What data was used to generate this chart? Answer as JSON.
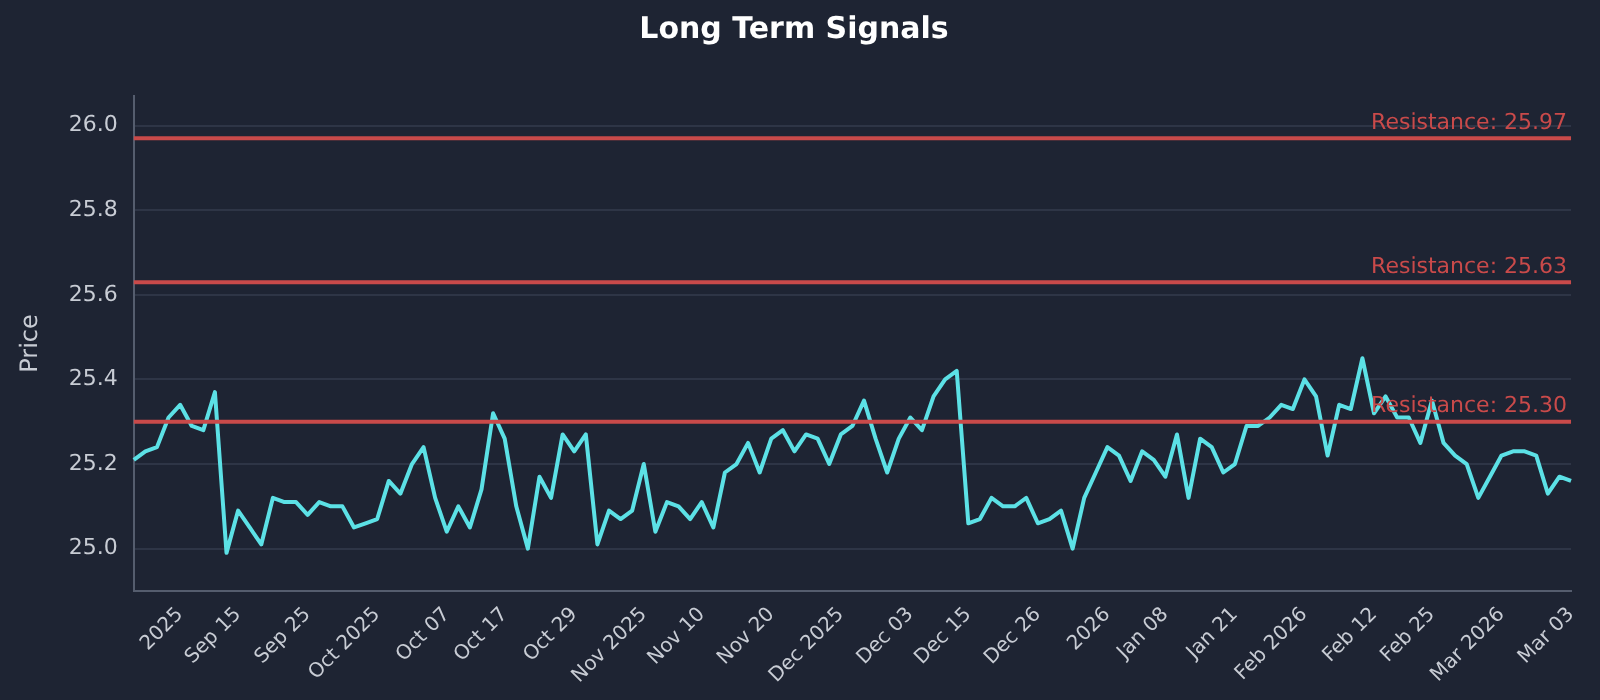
{
  "chart_data": {
    "type": "line",
    "title": "Long Term Signals",
    "ylabel": "Price",
    "categories": [
      null,
      null,
      null,
      null,
      "2025",
      null,
      null,
      null,
      null,
      "Sep 15",
      null,
      null,
      null,
      null,
      null,
      "Sep 25",
      null,
      null,
      null,
      null,
      null,
      "Oct 2025",
      null,
      null,
      null,
      null,
      null,
      "Oct 07",
      null,
      null,
      null,
      null,
      "Oct 17",
      null,
      null,
      null,
      null,
      null,
      "Oct 29",
      null,
      null,
      null,
      null,
      null,
      "Nov 2025",
      null,
      null,
      null,
      null,
      "Nov 10",
      null,
      null,
      null,
      null,
      null,
      "Nov 20",
      null,
      null,
      null,
      null,
      null,
      "Dec 2025",
      null,
      null,
      null,
      null,
      null,
      "Dec 03",
      null,
      null,
      null,
      null,
      "Dec 15",
      null,
      null,
      null,
      null,
      null,
      "Dec 26",
      null,
      null,
      null,
      null,
      null,
      "2026",
      null,
      null,
      null,
      null,
      "Jan 08",
      null,
      null,
      null,
      null,
      null,
      "Jan 21",
      null,
      null,
      null,
      null,
      null,
      "Feb 2026",
      null,
      null,
      null,
      null,
      null,
      "Feb 12",
      null,
      null,
      null,
      null,
      "Feb 25",
      null,
      null,
      null,
      null,
      null,
      "Mar 2026",
      null,
      null,
      null,
      null,
      null,
      "Mar 03"
    ],
    "series": [
      {
        "color": "#5ce1e6",
        "values": [
          25.21,
          25.23,
          25.24,
          25.31,
          25.34,
          25.29,
          25.28,
          25.37,
          24.99,
          25.09,
          25.05,
          25.01,
          25.12,
          25.11,
          25.11,
          25.08,
          25.11,
          25.1,
          25.1,
          25.05,
          25.06,
          25.07,
          25.16,
          25.13,
          25.2,
          25.24,
          25.12,
          25.04,
          25.1,
          25.05,
          25.14,
          25.32,
          25.26,
          25.1,
          25.0,
          25.17,
          25.12,
          25.27,
          25.23,
          25.27,
          25.01,
          25.09,
          25.07,
          25.09,
          25.2,
          25.04,
          25.11,
          25.1,
          25.07,
          25.11,
          25.05,
          25.18,
          25.2,
          25.25,
          25.18,
          25.26,
          25.28,
          25.23,
          25.27,
          25.26,
          25.2,
          25.27,
          25.29,
          25.35,
          25.26,
          25.18,
          25.26,
          25.31,
          25.28,
          25.36,
          25.4,
          25.42,
          25.06,
          25.07,
          25.12,
          25.1,
          25.1,
          25.12,
          25.06,
          25.07,
          25.09,
          25.0,
          25.12,
          25.18,
          25.24,
          25.22,
          25.16,
          25.23,
          25.21,
          25.17,
          25.27,
          25.12,
          25.26,
          25.24,
          25.18,
          25.2,
          25.29,
          25.29,
          25.31,
          25.34,
          25.33,
          25.4,
          25.36,
          25.22,
          25.34,
          25.33,
          25.45,
          25.32,
          25.36,
          25.31,
          25.31,
          25.25,
          25.35,
          25.25,
          25.22,
          25.2,
          25.12,
          25.17,
          25.22,
          25.23,
          25.23,
          25.22,
          25.13,
          25.17,
          25.16
        ]
      }
    ],
    "ylim": [
      24.9,
      26.07
    ],
    "yticks": [
      {
        "value": 25,
        "label": "25.0"
      },
      25.2,
      25.4,
      25.6,
      25.8,
      {
        "value": 26,
        "label": "26.0"
      }
    ],
    "grid": "y",
    "legend": false,
    "marker": "none",
    "line_style": "solid",
    "ref_lines": [
      {
        "axis": "y",
        "value": 25.97,
        "label": "Resistance: 25.97",
        "color": "#c94a4a"
      },
      {
        "axis": "y",
        "value": 25.63,
        "label": "Resistance: 25.63",
        "color": "#c94a4a"
      },
      {
        "axis": "y",
        "value": 25.3,
        "label": "Resistance: 25.30",
        "color": "#c94a4a"
      }
    ]
  }
}
